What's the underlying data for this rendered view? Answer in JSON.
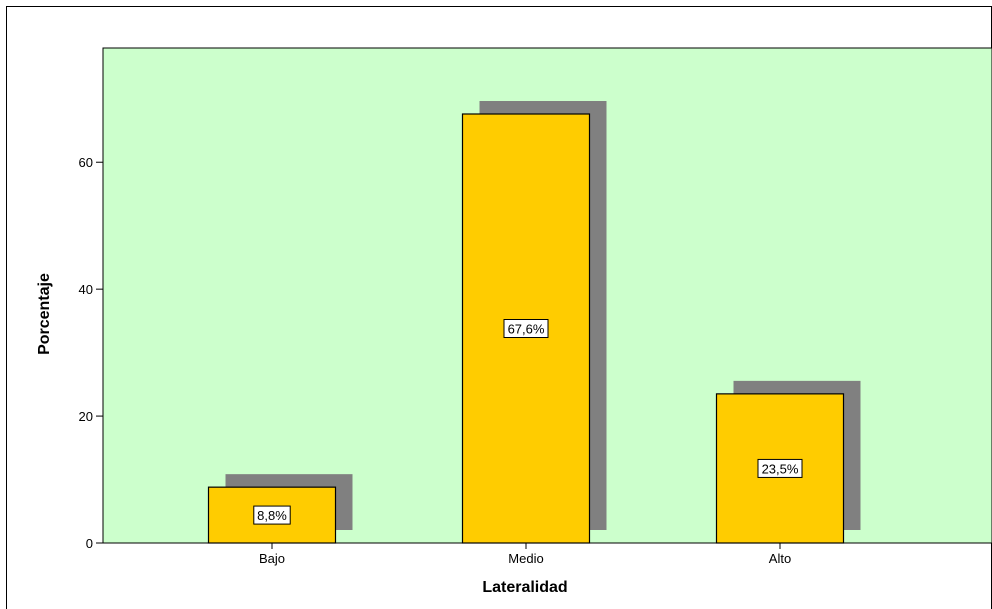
{
  "chart_data": {
    "type": "bar",
    "categories": [
      "Bajo",
      "Medio",
      "Alto"
    ],
    "values": [
      8.8,
      67.6,
      23.5
    ],
    "data_labels": [
      "8,8%",
      "67,6%",
      "23,5%"
    ],
    "title": "",
    "xlabel": "Lateralidad",
    "ylabel": "Porcentaje",
    "ylim": [
      0,
      78
    ],
    "yticks": [
      0,
      20,
      40,
      60
    ],
    "ytick_labels": [
      "0",
      "20",
      "40",
      "60"
    ],
    "grid": false,
    "legend": "none",
    "bar_style": "3d-shadow"
  },
  "colors": {
    "plot_background": "#ccffcc",
    "bar_fill": "#ffcc00",
    "bar_shadow": "#808080",
    "bar_border": "#000000",
    "label_box": "#ffffff"
  }
}
